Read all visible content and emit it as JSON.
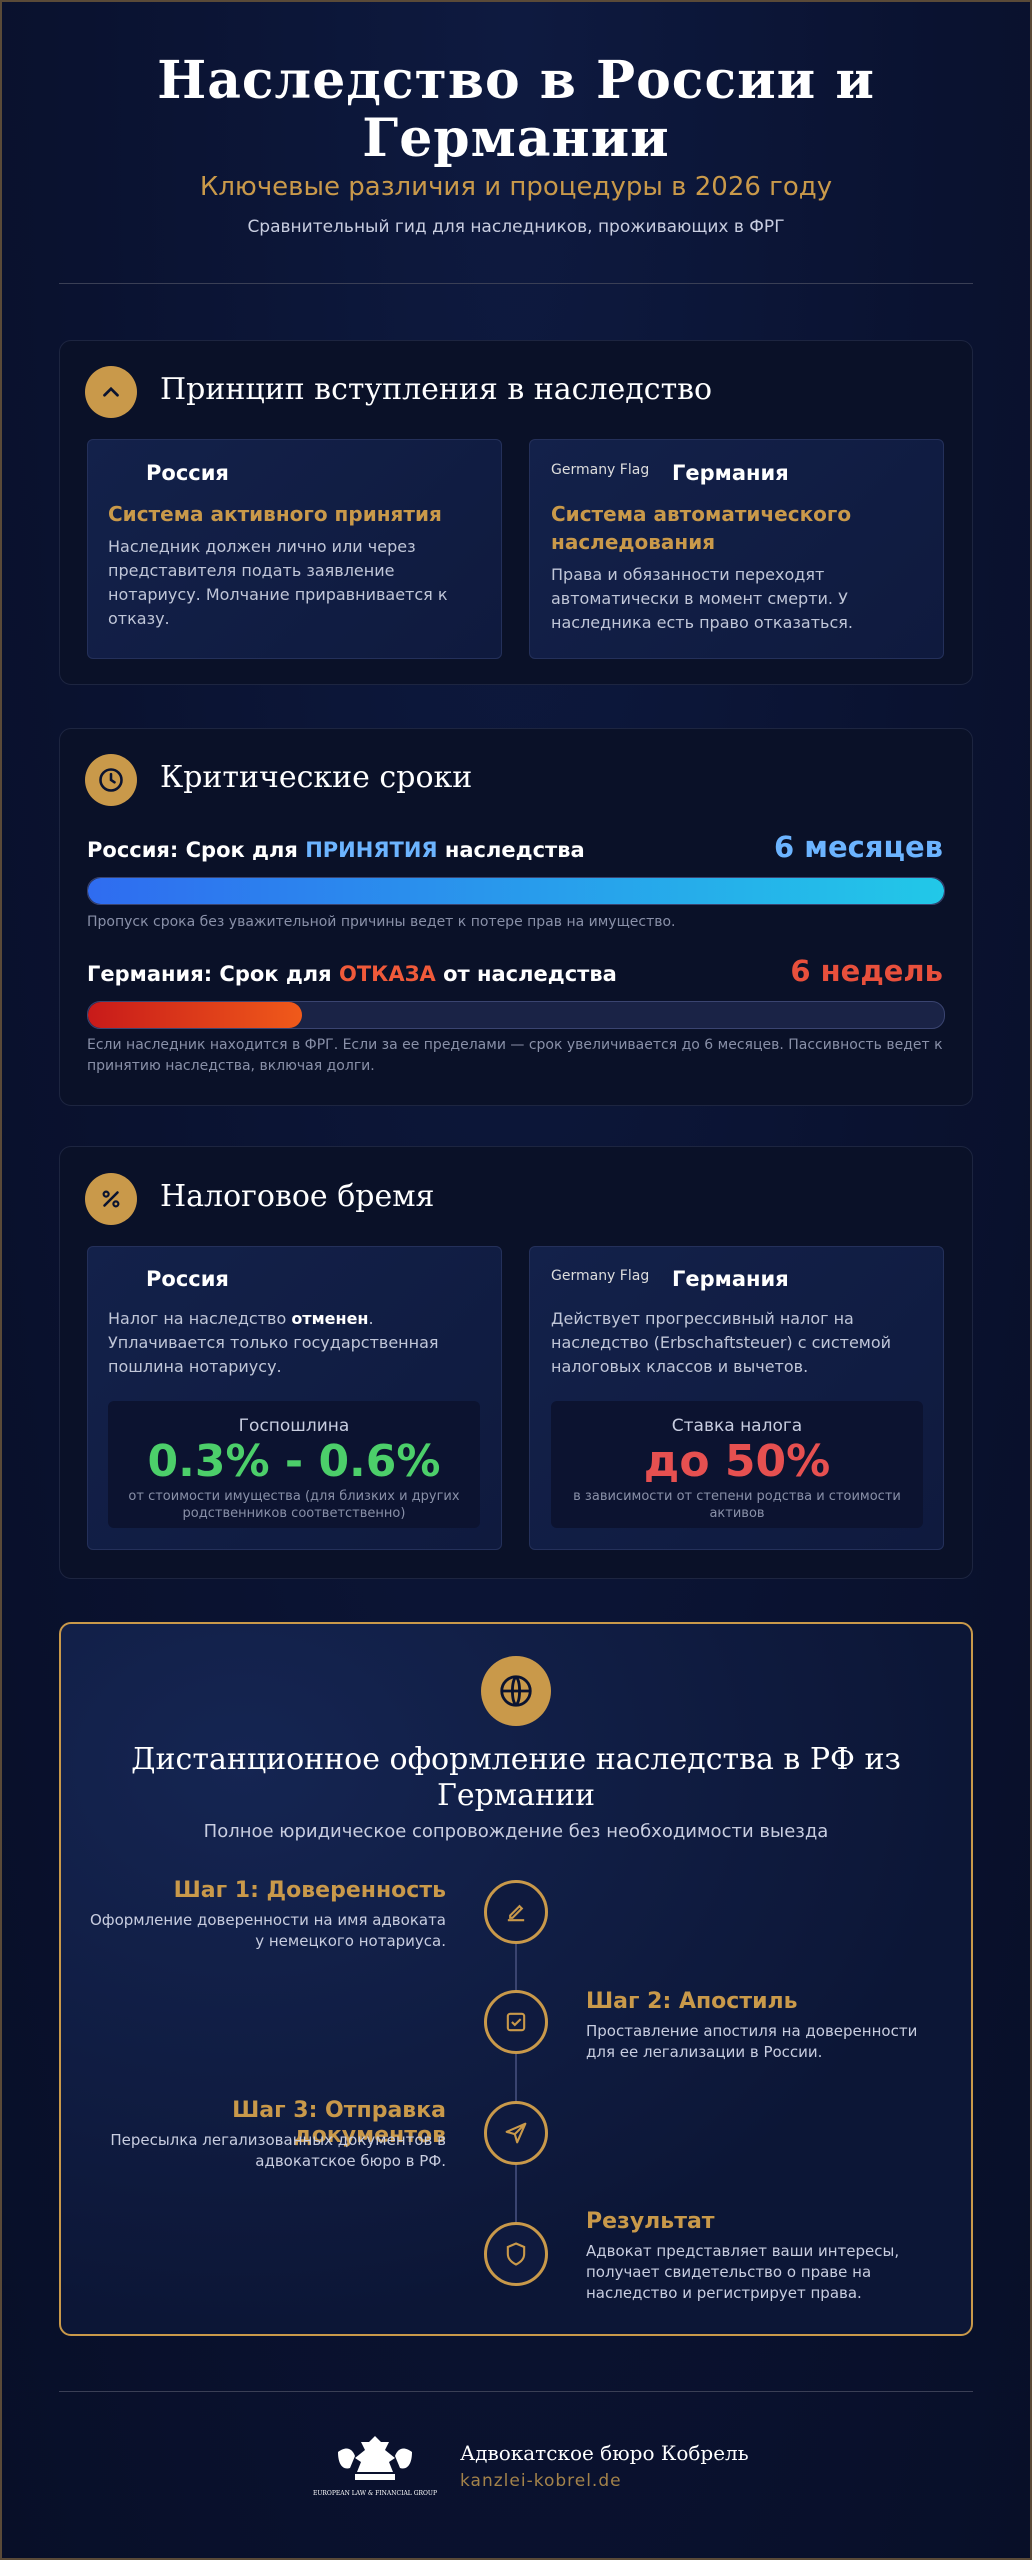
{
  "header": {
    "title": "Наследство в России и Германии",
    "subtitle": "Ключевые различия и процедуры в 2026 году",
    "tagline": "Сравнительный гид для наследников, проживающих в ФРГ"
  },
  "principle": {
    "heading": "Принцип вступления в наследство",
    "russia": {
      "name": "Россия",
      "title": "Система активного принятия",
      "text": "Наследник должен лично или через представителя подать заявление нотариусу. Молчание приравнивается к отказу."
    },
    "germany": {
      "flag_alt": "Germany Flag",
      "name": "Германия",
      "title": "Система автоматического наследования",
      "text": "Права и обязанности переходят автоматически в момент смерти. У наследника есть право отказаться."
    }
  },
  "deadlines": {
    "heading": "Критические сроки",
    "items": [
      {
        "label_start": "Россия: Срок для ",
        "label_highlight": "ПРИНЯТИЯ",
        "label_end": " наследства",
        "value": "6 месяцев",
        "progress": 100,
        "note": "Пропуск срока без уважительной причины ведет к потере прав на имущество."
      },
      {
        "label_start": "Германия: Срок для ",
        "label_highlight": "ОТКАЗА",
        "label_end": " от наследства",
        "value": "6 недель",
        "progress": 25,
        "note": "Если наследник находится в ФРГ. Если за ее пределами — срок увеличивается до 6 месяцев. Пассивность ведет к принятию наследства, включая долги."
      }
    ]
  },
  "tax": {
    "heading": "Налоговое бремя",
    "russia": {
      "name": "Россия",
      "text_start": "Налог на наследство ",
      "text_bold": "отменен",
      "text_end": ". Уплачивается только государственная пошлина нотариусу.",
      "box_label": "Госпошлина",
      "box_value": "0.3% - 0.6%",
      "box_note": "от стоимости имущества (для близких и других родственников соответственно)"
    },
    "germany": {
      "flag_alt": "Germany Flag",
      "name": "Германия",
      "text": "Действует прогрессивный налог на наследство (Erbschaftsteuer) с системой налоговых классов и вычетов.",
      "box_label": "Ставка налога",
      "box_value": "до 50%",
      "box_note": "в зависимости от степени родства и стоимости активов"
    }
  },
  "remote": {
    "title": "Дистанционное оформление наследства в РФ из Германии",
    "subtitle": "Полное юридическое сопровождение без необходимости выезда",
    "steps": [
      {
        "title": "Шаг 1: Доверенность",
        "text": "Оформление доверенности на имя адвоката у немецкого нотариуса."
      },
      {
        "title": "Шаг 2: Апостиль",
        "text": "Проставление апостиля на доверенности для ее легализации в России."
      },
      {
        "title": "Шаг 3: Отправка документов",
        "text": "Пересылка легализованных документов в адвокатское бюро в РФ."
      },
      {
        "title": "Результат",
        "text": "Адвокат представляет ваши интересы, получает свидетельство о праве на наследство и регистрирует права."
      }
    ]
  },
  "footer": {
    "logo_text": "EUROPEAN LAW & FINANCIAL GROUP",
    "name": "Адвокатское бюро Кобрель",
    "site": "kanzlei-kobrel.de"
  }
}
